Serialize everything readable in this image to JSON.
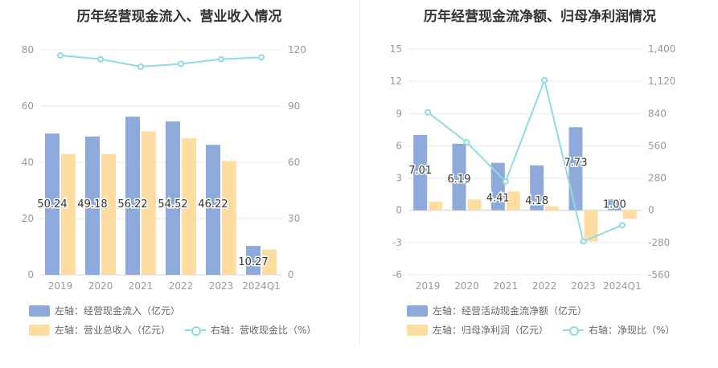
{
  "colors": {
    "bar_primary": "#8eaadb",
    "bar_secondary": "#ffdca1",
    "line": "#8fdbe0",
    "grid": "#e6e9f0",
    "axis_text": "#999999"
  },
  "chart_data": [
    {
      "type": "bar",
      "title": "历年经营现金流入、营业收入情况",
      "categories": [
        "2019",
        "2020",
        "2021",
        "2022",
        "2023",
        "2024Q1"
      ],
      "ylim": [
        0,
        80
      ],
      "yticks": [
        "0",
        "20",
        "40",
        "60",
        "80"
      ],
      "y2lim": [
        0,
        120
      ],
      "y2ticks": [
        "0",
        "30",
        "60",
        "90",
        "120"
      ],
      "series": [
        {
          "name": "左轴：经营现金流入（亿元）",
          "axis": "left",
          "kind": "bar",
          "values": [
            50.24,
            49.18,
            56.22,
            54.52,
            46.22,
            10.27
          ],
          "labels": [
            "50.24",
            "49.18",
            "56.22",
            "54.52",
            "46.22",
            "10.27"
          ]
        },
        {
          "name": "左轴：营业总收入（亿元）",
          "axis": "left",
          "kind": "bar",
          "values": [
            43,
            43,
            51,
            48.5,
            40.5,
            9
          ]
        },
        {
          "name": "右轴：营收现金比（%）",
          "axis": "right",
          "kind": "line",
          "values": [
            117,
            115,
            111,
            112.5,
            115,
            116
          ]
        }
      ],
      "legend": [
        "左轴：经营现金流入（亿元）",
        "左轴：营业总收入（亿元）",
        "右轴：营收现金比（%）"
      ]
    },
    {
      "type": "bar",
      "title": "历年经营现金流净额、归母净利润情况",
      "categories": [
        "2019",
        "2020",
        "2021",
        "2022",
        "2023",
        "2024Q1"
      ],
      "ylim": [
        -6,
        15
      ],
      "yticks": [
        "-6",
        "-3",
        "0",
        "3",
        "6",
        "9",
        "12",
        "15"
      ],
      "y2lim": [
        -560,
        1400
      ],
      "y2ticks": [
        "-560",
        "-280",
        "0",
        "280",
        "560",
        "840",
        "1,120",
        "1,400"
      ],
      "series": [
        {
          "name": "左轴：经营活动现金流净额（亿元）",
          "axis": "left",
          "kind": "bar",
          "values": [
            7.01,
            6.19,
            4.41,
            4.18,
            7.73,
            1.0
          ],
          "labels": [
            "7.01",
            "6.19",
            "4.41",
            "4.18",
            "7.73",
            "1.00"
          ]
        },
        {
          "name": "左轴：归母净利润（亿元）",
          "axis": "left",
          "kind": "bar",
          "values": [
            0.8,
            1.0,
            1.75,
            0.35,
            -2.9,
            -0.8
          ]
        },
        {
          "name": "右轴：净现比（%）",
          "axis": "right",
          "kind": "line",
          "values": [
            850,
            590,
            250,
            1130,
            -270,
            -130
          ]
        }
      ],
      "legend": [
        "左轴：经营活动现金流净额（亿元）",
        "左轴：归母净利润（亿元）",
        "右轴：净现比（%）"
      ]
    }
  ]
}
